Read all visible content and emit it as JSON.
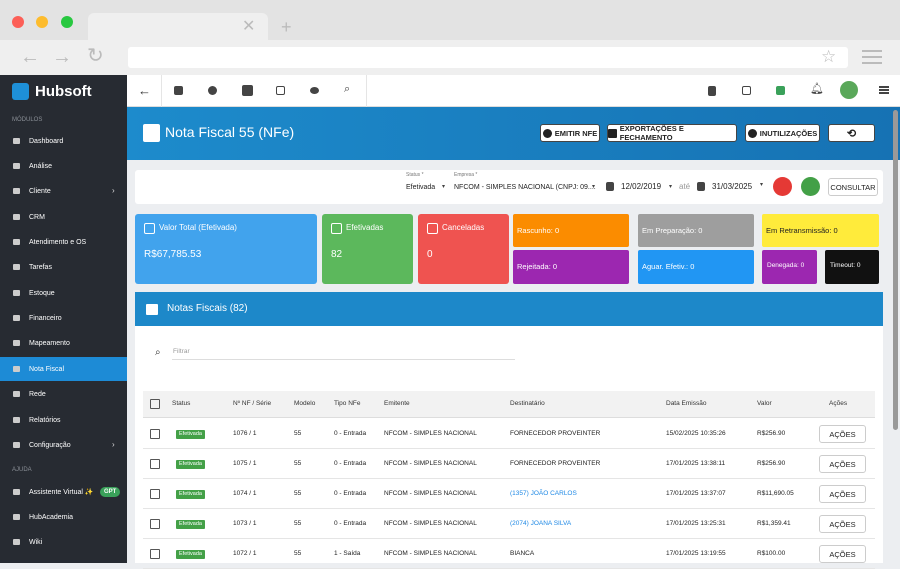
{
  "sidebar": {
    "brand": "Hubsoft",
    "modules_heading": "MÓDULOS",
    "active_item": 9,
    "items": [
      {
        "label": "Dashboard",
        "submenu": false
      },
      {
        "label": "Análise",
        "submenu": false
      },
      {
        "label": "Cliente",
        "submenu": true
      },
      {
        "label": "CRM",
        "submenu": false
      },
      {
        "label": "Atendimento e OS",
        "submenu": false
      },
      {
        "label": "Tarefas",
        "submenu": false
      },
      {
        "label": "Estoque",
        "submenu": false
      },
      {
        "label": "Financeiro",
        "submenu": false
      },
      {
        "label": "Mapeamento",
        "submenu": false
      },
      {
        "label": "Nota Fiscal",
        "submenu": false
      },
      {
        "label": "Rede",
        "submenu": false
      },
      {
        "label": "Relatórios",
        "submenu": false
      },
      {
        "label": "Configuração",
        "submenu": true
      }
    ],
    "help_heading": "AJUDA",
    "help_items": [
      "Assistente Virtual ✨",
      "HubAcademia",
      "Wiki"
    ],
    "gpt_badge": "GPT"
  },
  "header": {
    "title": "Nota Fiscal 55 (NFe)",
    "buttons": [
      "EMITIR NFE",
      "EXPORTAÇÕES E FECHAMENTO",
      "INUTILIZAÇÕES"
    ]
  },
  "filters": {
    "status_label": "Status *",
    "status": "Efetivada",
    "company_label": "Empresa *",
    "company": "NFCOM - SIMPLES NACIONAL (CNPJ: 09....",
    "date_from": "12/02/2019",
    "until": "até",
    "date_to": "31/03/2025",
    "submit": "CONSULTAR"
  },
  "summary": {
    "cards": [
      {
        "label": "Valor Total (Efetivada)",
        "value": "R$67,785.53"
      },
      {
        "label": "Efetivadas",
        "value": "82"
      },
      {
        "label": "Canceladas",
        "value": "0"
      }
    ],
    "status_boxes": [
      "Rascunho: 0",
      "Rejeitada: 0",
      "Em Preparação: 0",
      "Aguar. Efetiv.: 0",
      "Em Retransmissão: 0",
      "Denegada: 0",
      "Timeout: 0"
    ]
  },
  "table": {
    "title": "Notas Fiscais (82)",
    "search_placeholder": "Filtrar",
    "columns": [
      "Status",
      "Nº NF / Série",
      "Modelo",
      "Tipo NFe",
      "Emitente",
      "Destinatário",
      "Data Emissão",
      "Valor",
      "Ações"
    ],
    "rows": [
      {
        "cells": [
          "Efetivada",
          "1076 / 1",
          "55",
          "0 - Entrada",
          "NFCOM - SIMPLES NACIONAL",
          "FORNECEDOR PROVEINTER",
          "15/02/2025 10:35:26",
          "R$256.90",
          "AÇÕES"
        ],
        "recipient_is_link": false
      },
      {
        "cells": [
          "Efetivada",
          "1075 / 1",
          "55",
          "0 - Entrada",
          "NFCOM - SIMPLES NACIONAL",
          "FORNECEDOR PROVEINTER",
          "17/01/2025 13:38:11",
          "R$256.90",
          "AÇÕES"
        ],
        "recipient_is_link": false
      },
      {
        "cells": [
          "Efetivada",
          "1074 / 1",
          "55",
          "0 - Entrada",
          "NFCOM - SIMPLES NACIONAL",
          "(1357) JOÃO CARLOS",
          "17/01/2025 13:37:07",
          "R$11,690.05",
          "AÇÕES"
        ],
        "recipient_is_link": true
      },
      {
        "cells": [
          "Efetivada",
          "1073 / 1",
          "55",
          "0 - Entrada",
          "NFCOM - SIMPLES NACIONAL",
          "(2074) JOANA SILVA",
          "17/01/2025 13:25:31",
          "R$1,359.41",
          "AÇÕES"
        ],
        "recipient_is_link": true
      },
      {
        "cells": [
          "Efetivada",
          "1072 / 1",
          "55",
          "1 - Saída",
          "NFCOM - SIMPLES NACIONAL",
          "BIANCA",
          "17/01/2025 13:19:55",
          "R$100.00",
          "AÇÕES"
        ],
        "recipient_is_link": false
      }
    ]
  }
}
